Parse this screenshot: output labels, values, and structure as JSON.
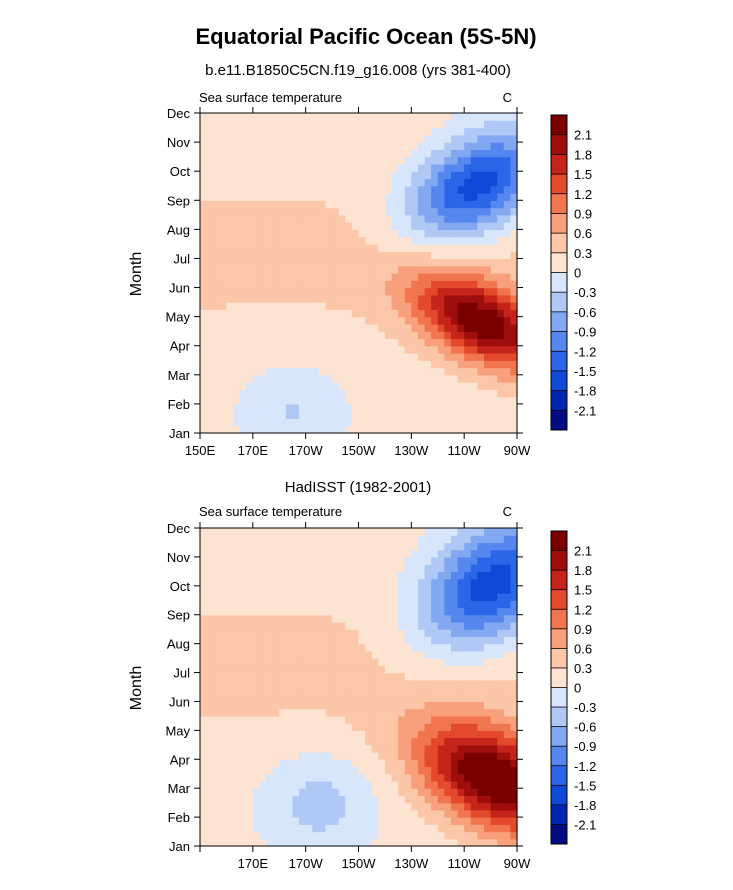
{
  "title": "Equatorial Pacific Ocean (5S-5N)",
  "chart_data": [
    {
      "type": "heatmap",
      "subtitle": "b.e11.B1850C5CN.f19_g16.008 (yrs 381-400)",
      "variable_label": "Sea surface temperature",
      "units_label": "C",
      "ylabel": "Month",
      "x_ticks": [
        "150E",
        "170E",
        "170W",
        "150W",
        "130W",
        "110W",
        "90W"
      ],
      "y_ticks": [
        "Jan",
        "Feb",
        "Mar",
        "Apr",
        "May",
        "Jun",
        "Jul",
        "Aug",
        "Sep",
        "Oct",
        "Nov",
        "Dec"
      ],
      "x_range": [
        150,
        270
      ],
      "y_range": [
        0,
        11
      ],
      "colorbar_levels": [
        -2.1,
        -1.8,
        -1.5,
        -1.2,
        -0.9,
        -0.6,
        -0.3,
        0,
        0.3,
        0.6,
        0.9,
        1.2,
        1.5,
        1.8,
        2.1
      ],
      "features": [
        {
          "kind": "warm",
          "center_lon": 257,
          "center_month": 3.8,
          "peak": 2.1,
          "lon_spread": 26,
          "month_spread": 1.4,
          "tilt": -0.035
        },
        {
          "kind": "cold",
          "center_lon": 255,
          "center_month": 8.5,
          "peak": -1.9,
          "lon_spread": 26,
          "month_spread": 1.7,
          "tilt": 0.03
        },
        {
          "kind": "cold",
          "center_lon": 185,
          "center_month": 0.8,
          "peak": -0.45,
          "lon_spread": 20,
          "month_spread": 1.6,
          "tilt": 0
        }
      ]
    },
    {
      "type": "heatmap",
      "subtitle": "HadISST (1982-2001)",
      "variable_label": "Sea surface temperature",
      "units_label": "C",
      "ylabel": "Month",
      "x_ticks": [
        "",
        "170E",
        "170W",
        "150W",
        "130W",
        "110W",
        "90W"
      ],
      "y_ticks": [
        "Jan",
        "Feb",
        "Mar",
        "Apr",
        "May",
        "Jun",
        "Jul",
        "Aug",
        "Sep",
        "Oct",
        "Nov",
        "Dec"
      ],
      "x_range": [
        150,
        270
      ],
      "y_range": [
        0,
        11
      ],
      "colorbar_levels": [
        -2.1,
        -1.8,
        -1.5,
        -1.2,
        -0.9,
        -0.6,
        -0.3,
        0,
        0.3,
        0.6,
        0.9,
        1.2,
        1.5,
        1.8,
        2.1
      ],
      "features": [
        {
          "kind": "warm",
          "center_lon": 262,
          "center_month": 2.3,
          "peak": 2.4,
          "lon_spread": 28,
          "month_spread": 1.7,
          "tilt": -0.03
        },
        {
          "kind": "cold",
          "center_lon": 260,
          "center_month": 9.0,
          "peak": -1.9,
          "lon_spread": 26,
          "month_spread": 2.0,
          "tilt": 0.03
        },
        {
          "kind": "cold",
          "center_lon": 195,
          "center_month": 1.5,
          "peak": -0.55,
          "lon_spread": 22,
          "month_spread": 1.8,
          "tilt": 0
        }
      ]
    }
  ],
  "colors": {
    "palette": [
      "#000d83",
      "#0025b1",
      "#0f49d8",
      "#2c66e8",
      "#5587ef",
      "#82a8f2",
      "#b0c8f5",
      "#d7e6fb",
      "#fde4d2",
      "#fbc7a8",
      "#f7a07b",
      "#f17650",
      "#e3492b",
      "#c5241a",
      "#9e0e0c",
      "#7a0000"
    ]
  }
}
